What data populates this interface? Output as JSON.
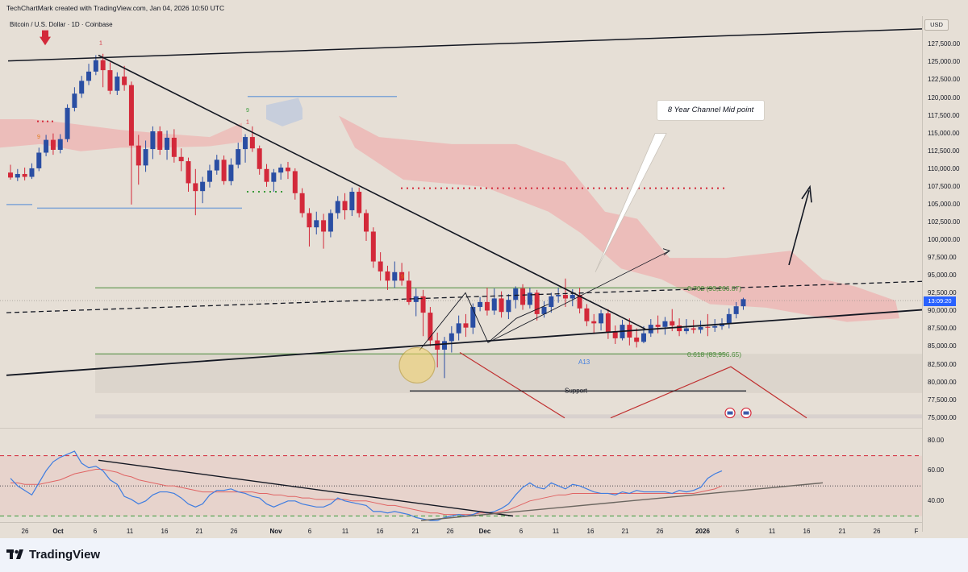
{
  "header": {
    "credit": "TechChartMark created with TradingView.com, Jan 04, 2026 10:50 UTC",
    "symbol": "Bitcoin / U.S. Dollar · 1D · Coinbase",
    "currency": "USD",
    "countdown": "13:09:20"
  },
  "annotations": {
    "channel_mid": "8 Year Channel Mid point",
    "fib_702": "0.702 (93,266.87)",
    "fib_618": "0.618 (83,956.65)",
    "support": "Support",
    "a13": "A13",
    "td_1": "1",
    "td_9a": "9",
    "td_9b": "9",
    "td_9c": "9",
    "td_1b": "1"
  },
  "colors": {
    "bull": "#2a4ea3",
    "bear": "#d3293a",
    "cloud": "#f0a7a7",
    "rsi": "#3f7de0",
    "rsi_ma": "#e06464",
    "fib_green": "#4a8a3a",
    "trend": "#131722",
    "support_red": "#c03030",
    "footer_bg": "#f0f3fa"
  },
  "footer": {
    "brand": "TradingView"
  },
  "chart_data": [
    {
      "type": "candlestick",
      "title": "Bitcoin / U.S. Dollar · 1D · Coinbase",
      "ylim": [
        73500,
        131500
      ],
      "y_ticks": [
        "127,500.00",
        "125,000.00",
        "122,500.00",
        "120,000.00",
        "117,500.00",
        "115,000.00",
        "112,500.00",
        "110,000.00",
        "107,500.00",
        "105,000.00",
        "102,500.00",
        "100,000.00",
        "97,500.00",
        "95,000.00",
        "92,500.00",
        "90,000.00",
        "87,500.00",
        "85,000.00",
        "82,500.00",
        "80,000.00",
        "77,500.00",
        "75,000.00"
      ],
      "x_ticks": [
        "26",
        "Oct",
        "6",
        "11",
        "16",
        "21",
        "26",
        "Nov",
        "6",
        "11",
        "16",
        "21",
        "26",
        "Dec",
        "6",
        "11",
        "16",
        "21",
        "26",
        "2026",
        "6",
        "11",
        "16",
        "21",
        "26",
        "F"
      ],
      "candles": [
        [
          109500,
          108800,
          110600,
          108500
        ],
        [
          108800,
          109300,
          110000,
          108300
        ],
        [
          109300,
          108900,
          110200,
          108400
        ],
        [
          108900,
          110100,
          110800,
          108600
        ],
        [
          110100,
          112300,
          113000,
          109700
        ],
        [
          112300,
          114100,
          114800,
          111800
        ],
        [
          114100,
          112700,
          115000,
          112000
        ],
        [
          112700,
          114200,
          114900,
          112200
        ],
        [
          114200,
          118600,
          119100,
          113800
        ],
        [
          118600,
          120600,
          121500,
          118100
        ],
        [
          120600,
          122400,
          123100,
          120000
        ],
        [
          122400,
          123700,
          124800,
          121800
        ],
        [
          123700,
          125300,
          126000,
          123200
        ],
        [
          125300,
          123900,
          126200,
          121500
        ],
        [
          123900,
          121000,
          125000,
          120500
        ],
        [
          121000,
          123000,
          123600,
          120400
        ],
        [
          123000,
          121800,
          124500,
          121000
        ],
        [
          121800,
          113300,
          122300,
          105000
        ],
        [
          113300,
          110500,
          114800,
          107800
        ],
        [
          110500,
          112800,
          114000,
          109600
        ],
        [
          112800,
          115300,
          116000,
          111400
        ],
        [
          115300,
          112700,
          116000,
          112000
        ],
        [
          112700,
          114400,
          115400,
          111300
        ],
        [
          114400,
          111700,
          115600,
          110900
        ],
        [
          111700,
          111100,
          112900,
          109700
        ],
        [
          111100,
          108000,
          111600,
          106800
        ],
        [
          108000,
          106900,
          110000,
          103500
        ],
        [
          106900,
          108200,
          108900,
          105200
        ],
        [
          108200,
          109800,
          110600,
          107400
        ],
        [
          109800,
          111300,
          112000,
          109200
        ],
        [
          111300,
          108300,
          111900,
          107800
        ],
        [
          108300,
          110600,
          111500,
          107700
        ],
        [
          110600,
          112800,
          113700,
          110100
        ],
        [
          112800,
          114500,
          114900,
          110900
        ],
        [
          114500,
          112900,
          116000,
          112400
        ],
        [
          112900,
          110000,
          113300,
          109200
        ],
        [
          110000,
          108200,
          110700,
          107500
        ],
        [
          108200,
          109500,
          110000,
          106800
        ],
        [
          109500,
          110200,
          110700,
          108500
        ],
        [
          110200,
          109700,
          111000,
          108600
        ],
        [
          109700,
          106600,
          110100,
          105700
        ],
        [
          106600,
          103800,
          107300,
          103200
        ],
        [
          103800,
          101800,
          104500,
          99100
        ],
        [
          101800,
          102800,
          104000,
          100800
        ],
        [
          102800,
          101200,
          103700,
          98800
        ],
        [
          101200,
          103800,
          104300,
          100400
        ],
        [
          103800,
          105500,
          106200,
          103000
        ],
        [
          105500,
          104200,
          106600,
          102900
        ],
        [
          104200,
          106800,
          107400,
          103400
        ],
        [
          106800,
          103800,
          107400,
          103200
        ],
        [
          103800,
          101200,
          104300,
          99900
        ],
        [
          101200,
          97000,
          101800,
          96100
        ],
        [
          97000,
          95600,
          98300,
          94300
        ],
        [
          95600,
          94300,
          96400,
          93000
        ],
        [
          94300,
          95500,
          97000,
          93300
        ],
        [
          95500,
          94300,
          96800,
          93600
        ],
        [
          94300,
          91300,
          95600,
          90900
        ],
        [
          91300,
          92100,
          93200,
          89300
        ],
        [
          92100,
          89800,
          93000,
          86500
        ],
        [
          89800,
          85900,
          90600,
          85100
        ],
        [
          85900,
          84600,
          87000,
          82100
        ],
        [
          84600,
          85800,
          86400,
          80600
        ],
        [
          85800,
          86900,
          87900,
          84200
        ],
        [
          86900,
          88300,
          89400,
          85900
        ],
        [
          88300,
          87700,
          89600,
          86400
        ],
        [
          87700,
          90600,
          91100,
          86800
        ],
        [
          90600,
          91300,
          92000,
          90000
        ],
        [
          91300,
          90100,
          93300,
          89400
        ],
        [
          90100,
          91800,
          93200,
          89500
        ],
        [
          91800,
          89900,
          92800,
          89100
        ],
        [
          89900,
          91600,
          92400,
          88900
        ],
        [
          91600,
          93200,
          93500,
          90400
        ],
        [
          93200,
          90900,
          93800,
          90200
        ],
        [
          90900,
          92600,
          93300,
          90400
        ],
        [
          92600,
          89600,
          93000,
          88700
        ],
        [
          89600,
          90600,
          91400,
          89100
        ],
        [
          90600,
          92100,
          92600,
          89800
        ],
        [
          92100,
          92300,
          93300,
          91200
        ],
        [
          92300,
          91800,
          94600,
          90600
        ],
        [
          91800,
          92300,
          93100,
          90700
        ],
        [
          92300,
          90400,
          93300,
          89700
        ],
        [
          90400,
          88600,
          91000,
          87900
        ],
        [
          88600,
          88300,
          89600,
          86800
        ],
        [
          88300,
          89700,
          90200,
          87300
        ],
        [
          89700,
          87100,
          90300,
          86100
        ],
        [
          87100,
          86200,
          88000,
          85400
        ],
        [
          86200,
          88100,
          88800,
          85900
        ],
        [
          88100,
          86300,
          89000,
          85200
        ],
        [
          86300,
          85700,
          87600,
          84900
        ],
        [
          85700,
          86900,
          87900,
          85500
        ],
        [
          86900,
          88100,
          88900,
          86400
        ],
        [
          88100,
          87800,
          89400,
          86900
        ],
        [
          87800,
          88600,
          89200,
          86700
        ],
        [
          88600,
          88000,
          90300,
          87200
        ],
        [
          88000,
          87200,
          89000,
          86500
        ],
        [
          87200,
          87600,
          88900,
          86800
        ],
        [
          87600,
          87400,
          88800,
          86900
        ],
        [
          87400,
          87800,
          88700,
          86900
        ],
        [
          87800,
          87700,
          89600,
          86500
        ],
        [
          87700,
          87900,
          88900,
          87100
        ],
        [
          87900,
          88300,
          89000,
          87400
        ],
        [
          88300,
          89600,
          90400,
          87600
        ],
        [
          89600,
          90700,
          91300,
          89000
        ],
        [
          90700,
          91700,
          91900,
          90200
        ]
      ]
    },
    {
      "type": "line",
      "title": "",
      "ylim": [
        26,
        88
      ],
      "y_ticks": [
        "80.00",
        "60.00",
        "40.00"
      ],
      "series": [
        {
          "values": [
            55,
            50,
            47,
            44,
            52,
            60,
            66,
            69,
            71,
            73,
            65,
            62,
            63,
            60,
            54,
            51,
            43,
            41,
            38,
            40,
            44,
            46,
            46,
            45,
            42,
            38,
            36,
            38,
            44,
            47,
            47,
            48,
            46,
            45,
            43,
            42,
            38,
            36,
            38,
            40,
            40,
            38,
            37,
            36,
            36,
            38,
            42,
            40,
            39,
            38,
            37,
            33,
            33,
            32,
            33,
            32,
            31,
            29,
            28,
            27,
            27,
            29,
            30,
            31,
            30,
            31,
            33,
            32,
            33,
            35,
            38,
            44,
            49,
            52,
            49,
            48,
            52,
            50,
            48,
            51,
            50,
            48,
            46,
            45,
            45,
            44,
            46,
            45,
            47,
            46,
            46,
            46,
            46,
            45,
            47,
            46,
            47,
            49,
            55,
            58,
            60
          ]
        },
        {
          "values": [
            52,
            52,
            51,
            51,
            51,
            52,
            53,
            54,
            56,
            58,
            59,
            60,
            61,
            61,
            60,
            59,
            57,
            56,
            54,
            53,
            52,
            51,
            50,
            50,
            49,
            48,
            47,
            46,
            46,
            46,
            46,
            46,
            46,
            46,
            46,
            45,
            45,
            44,
            44,
            43,
            43,
            42,
            42,
            41,
            41,
            41,
            41,
            41,
            40,
            40,
            40,
            39,
            38,
            37,
            37,
            36,
            35,
            34,
            33,
            32,
            32,
            31,
            31,
            31,
            31,
            31,
            32,
            32,
            32,
            33,
            34,
            36,
            38,
            40,
            41,
            42,
            43,
            44,
            44,
            45,
            45,
            45,
            45,
            45,
            45,
            45,
            45,
            45,
            45,
            45,
            45,
            45,
            45,
            45,
            45,
            45,
            45,
            46,
            47,
            48,
            50
          ]
        }
      ]
    }
  ]
}
